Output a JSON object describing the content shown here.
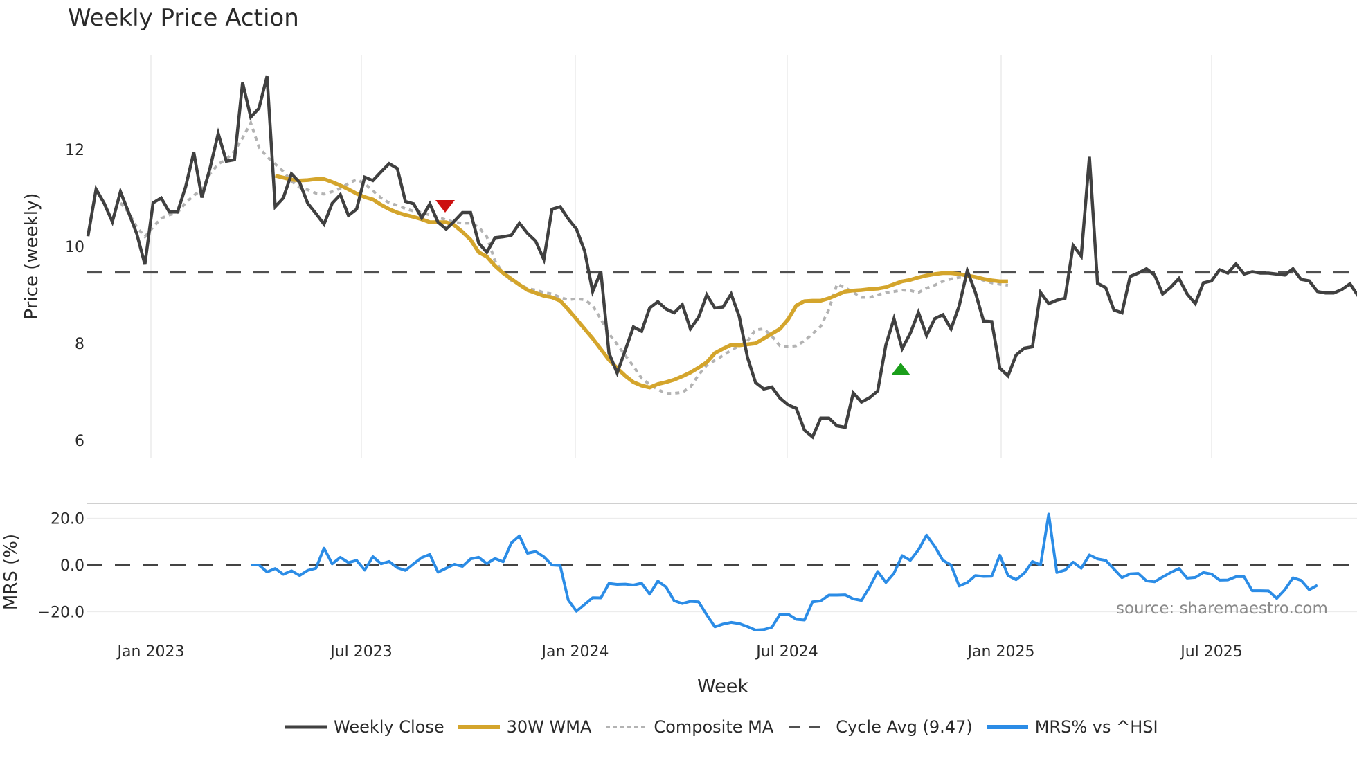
{
  "title": "Weekly Price Action",
  "axes": {
    "main_ylabel": "Price (weekly)",
    "mrs_ylabel": "MRS (%)",
    "xlabel": "Week",
    "main_yticks": [
      "6",
      "8",
      "10",
      "12"
    ],
    "mrs_yticks": [
      "−20.0",
      "0.0",
      "20.0"
    ],
    "xticks": [
      "Jan 2023",
      "Jul 2023",
      "Jan 2024",
      "Jul 2024",
      "Jan 2025",
      "Jul 2025"
    ]
  },
  "legend": {
    "items": [
      {
        "label": "Weekly Close",
        "color": "#404040",
        "style": "solid"
      },
      {
        "label": "30W WMA",
        "color": "#d4a52c",
        "style": "solid"
      },
      {
        "label": "Composite MA",
        "color": "#b3b3b3",
        "style": "dotted"
      },
      {
        "label": "Cycle Avg (9.47)",
        "color": "#505050",
        "style": "dashed"
      },
      {
        "label": "MRS% vs ^HSI",
        "color": "#2b8ce6",
        "style": "solid"
      }
    ]
  },
  "source": "source: sharemaestro.com",
  "colors": {
    "close": "#404040",
    "wma": "#d4a52c",
    "composite": "#b3b3b3",
    "cycle": "#505050",
    "mrs": "#2b8ce6",
    "sell_marker": "#cc1111",
    "buy_marker": "#1a9e1a",
    "grid": "#ececec"
  },
  "chart_data": [
    {
      "type": "line",
      "title": "Weekly Price Action",
      "xlabel": "Week",
      "ylabel": "Price (weekly)",
      "ylim": [
        5.6,
        13.9
      ],
      "x_ticks": [
        "Jan 2023",
        "Jul 2023",
        "Jan 2024",
        "Jul 2024",
        "Jan 2025",
        "Jul 2025"
      ],
      "x_start": "Nov 2022",
      "x_end": "Oct 2025",
      "series": [
        {
          "name": "Weekly Close",
          "values": [
            10.21,
            11.18,
            10.89,
            10.51,
            11.13,
            10.7,
            10.26,
            9.63,
            10.9,
            11.0,
            10.71,
            10.71,
            11.23,
            11.94,
            11.01,
            11.62,
            12.33,
            11.76,
            11.79,
            13.38,
            12.67,
            12.85,
            13.51,
            10.82,
            11.0,
            11.5,
            11.32,
            10.89,
            10.68,
            10.46,
            10.89,
            11.07,
            10.64,
            10.77,
            11.43,
            11.36,
            11.54,
            11.71,
            11.61,
            10.93,
            10.88,
            10.59,
            10.88,
            10.5,
            10.36,
            10.52,
            10.7,
            10.7,
            10.07,
            9.88,
            10.18,
            10.2,
            10.23,
            10.48,
            10.27,
            10.11,
            9.73,
            10.77,
            10.82,
            10.57,
            10.36,
            9.91,
            9.07,
            9.48,
            7.8,
            7.39,
            7.86,
            8.34,
            8.25,
            8.73,
            8.86,
            8.71,
            8.63,
            8.8,
            8.3,
            8.54,
            9.0,
            8.73,
            8.75,
            9.02,
            8.55,
            7.71,
            7.19,
            7.06,
            7.1,
            6.87,
            6.73,
            6.66,
            6.21,
            6.07,
            6.46,
            6.46,
            6.3,
            6.27,
            6.98,
            6.79,
            6.88,
            7.02,
            7.97,
            8.51,
            7.89,
            8.21,
            8.64,
            8.16,
            8.51,
            8.59,
            8.3,
            8.77,
            9.5,
            9.05,
            8.46,
            8.45,
            7.49,
            7.33,
            7.76,
            7.9,
            7.93,
            9.05,
            8.82,
            8.89,
            8.93,
            10.02,
            9.8,
            11.85,
            9.24,
            9.15,
            8.69,
            8.63,
            9.38,
            9.45,
            9.54,
            9.41,
            9.02,
            9.16,
            9.34,
            9.02,
            8.82,
            9.25,
            9.29,
            9.52,
            9.45,
            9.64,
            9.43,
            9.48,
            9.45,
            9.45,
            9.43,
            9.41,
            9.54,
            9.32,
            9.29,
            9.07,
            9.04,
            9.04,
            9.11,
            9.23,
            8.98,
            9.04
          ]
        },
        {
          "name": "30W WMA",
          "values_note": "starts ~May 2023",
          "values": [
            11.46,
            11.42,
            11.38,
            11.36,
            11.37,
            11.39,
            11.39,
            11.33,
            11.26,
            11.18,
            11.09,
            11.02,
            10.97,
            10.86,
            10.77,
            10.7,
            10.65,
            10.61,
            10.56,
            10.5,
            10.5,
            10.5,
            10.44,
            10.3,
            10.14,
            9.88,
            9.79,
            9.6,
            9.45,
            9.33,
            9.21,
            9.1,
            9.04,
            8.98,
            8.95,
            8.88,
            8.7,
            8.5,
            8.3,
            8.1,
            7.88,
            7.66,
            7.49,
            7.33,
            7.2,
            7.13,
            7.09,
            7.16,
            7.2,
            7.25,
            7.32,
            7.4,
            7.5,
            7.61,
            7.8,
            7.89,
            7.97,
            7.96,
            7.98,
            8.0,
            8.1,
            8.2,
            8.3,
            8.5,
            8.78,
            8.87,
            8.88,
            8.88,
            8.93,
            9.0,
            9.07,
            9.09,
            9.1,
            9.12,
            9.13,
            9.16,
            9.22,
            9.28,
            9.31,
            9.36,
            9.4,
            9.43,
            9.45,
            9.45,
            9.43,
            9.4,
            9.37,
            9.33,
            9.3,
            9.28,
            9.28
          ]
        },
        {
          "name": "Composite MA",
          "values": [
            10.9,
            10.7,
            10.4,
            10.2,
            10.4,
            10.58,
            10.65,
            10.7,
            10.9,
            11.05,
            11.18,
            11.5,
            11.7,
            11.8,
            11.97,
            12.24,
            12.55,
            12.05,
            11.85,
            11.7,
            11.55,
            11.35,
            11.22,
            11.17,
            11.1,
            11.08,
            11.13,
            11.2,
            11.3,
            11.38,
            11.3,
            11.15,
            11.0,
            10.9,
            10.85,
            10.78,
            10.73,
            10.7,
            10.65,
            10.6,
            10.55,
            10.5,
            10.48,
            10.48,
            10.4,
            10.2,
            9.7,
            9.45,
            9.3,
            9.22,
            9.13,
            9.1,
            9.05,
            9.02,
            8.95,
            8.9,
            8.92,
            8.9,
            8.78,
            8.5,
            8.2,
            7.98,
            7.75,
            7.53,
            7.28,
            7.15,
            7.05,
            6.97,
            6.97,
            6.99,
            7.1,
            7.35,
            7.55,
            7.65,
            7.75,
            7.86,
            7.95,
            8.05,
            8.28,
            8.3,
            8.15,
            7.95,
            7.93,
            7.95,
            8.05,
            8.2,
            8.35,
            8.7,
            9.22,
            9.15,
            9.05,
            8.95,
            8.95,
            9.0,
            9.05,
            9.07,
            9.1,
            9.09,
            9.05,
            9.14,
            9.2,
            9.28,
            9.33,
            9.36,
            9.37,
            9.36,
            9.3,
            9.25,
            9.22,
            9.2
          ]
        },
        {
          "name": "Cycle Avg (9.47)",
          "values": [
            9.47
          ]
        }
      ],
      "markers": [
        {
          "type": "sell",
          "shape": "triangle-down",
          "date": "Sep 2023",
          "price": 10.88
        },
        {
          "type": "buy",
          "shape": "triangle-up",
          "date": "Oct 2024",
          "price": 7.45
        }
      ]
    },
    {
      "type": "line",
      "title": "",
      "xlabel": "Week",
      "ylabel": "MRS (%)",
      "ylim": [
        -27,
        28
      ],
      "yticks": [
        -20,
        0,
        20
      ],
      "series": [
        {
          "name": "MRS% vs ^HSI",
          "values_note": "starts ~Apr 2023",
          "values": [
            0.0,
            0.0,
            -3.0,
            -1.5,
            -4.0,
            -2.5,
            -4.5,
            -2.3,
            -1.4,
            7.2,
            0.5,
            3.3,
            1.0,
            2.0,
            -2.2,
            3.6,
            0.5,
            1.5,
            -1.2,
            -2.3,
            0.5,
            3.2,
            4.5,
            -3.1,
            -1.4,
            0.3,
            -0.6,
            2.6,
            3.3,
            0.6,
            2.8,
            1.4,
            9.4,
            12.5,
            5.0,
            5.8,
            3.5,
            0.0,
            -0.2,
            -15.0,
            -19.8,
            -16.9,
            -14.0,
            -14.1,
            -7.9,
            -8.3,
            -8.2,
            -8.6,
            -7.8,
            -12.5,
            -6.9,
            -9.4,
            -15.3,
            -16.5,
            -15.6,
            -15.8,
            -21.4,
            -26.5,
            -25.3,
            -24.6,
            -25.1,
            -26.4,
            -27.9,
            -27.7,
            -26.7,
            -21.1,
            -21.1,
            -23.3,
            -23.6,
            -15.8,
            -15.4,
            -12.9,
            -12.9,
            -12.8,
            -14.5,
            -15.2,
            -9.5,
            -2.8,
            -7.5,
            -3.5,
            4.0,
            2.0,
            6.5,
            12.8,
            8.0,
            2.0,
            0.0,
            -9.0,
            -7.5,
            -4.5,
            -4.9,
            -4.8,
            4.2,
            -4.5,
            -6.3,
            -3.5,
            1.5,
            0.0,
            21.8,
            -3.2,
            -2.2,
            1.2,
            -1.4,
            4.3,
            2.6,
            2.0,
            -1.7,
            -5.4,
            -3.8,
            -3.6,
            -6.8,
            -7.2,
            -5.1,
            -3.2,
            -1.5,
            -5.6,
            -5.3,
            -3.2,
            -3.9,
            -6.5,
            -6.4,
            -5.0,
            -5.0,
            -11.0,
            -11.0,
            -11.1,
            -14.3,
            -10.6,
            -5.5,
            -6.6,
            -10.6,
            -8.7
          ]
        }
      ],
      "reference_line": 0
    }
  ]
}
